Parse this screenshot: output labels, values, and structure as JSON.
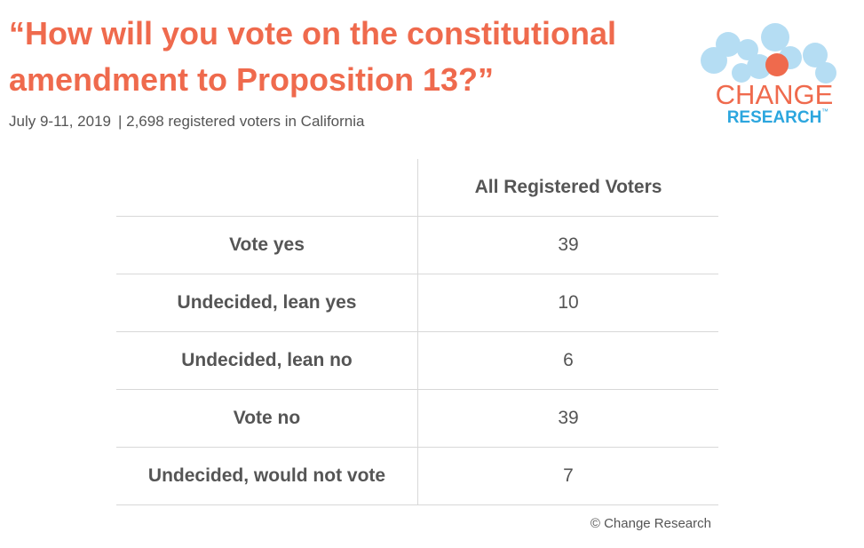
{
  "header": {
    "title": [
      "“How will you vote on the constitutional",
      "amendment to Proposition 13?”"
    ],
    "date": "July 9-11, 2019",
    "sample": "| 2,698 registered voters in California"
  },
  "logo": {
    "top": "CHANGE",
    "bottom": "RESEARCH",
    "mark": "™"
  },
  "table": {
    "column": "All Registered Voters",
    "rows": [
      [
        "Vote yes",
        39
      ],
      [
        "Undecided, lean yes",
        10
      ],
      [
        "Undecided, lean no",
        6
      ],
      [
        "Vote no",
        39
      ],
      [
        "Undecided, would not vote",
        7
      ]
    ]
  },
  "footer": "© Change Research"
}
